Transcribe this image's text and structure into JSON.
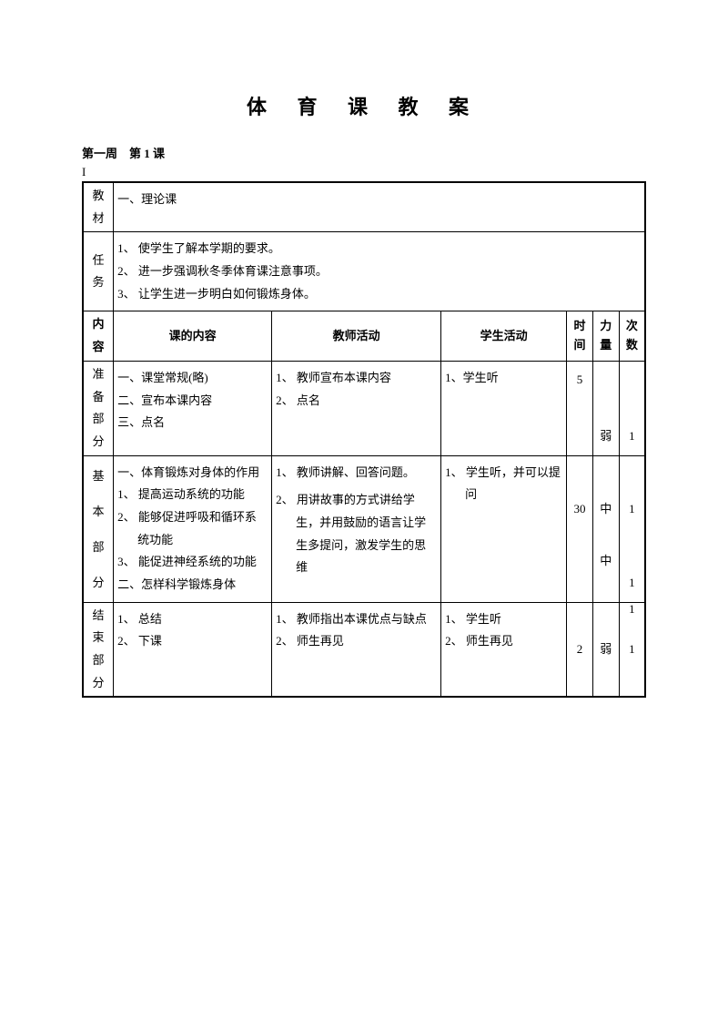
{
  "title": "体 育 课 教 案",
  "subtitle": "第一周　第 1 课",
  "marker": "I",
  "labels": {
    "material": "教材",
    "task": "任务",
    "content": "内容",
    "prepare": "准备部分",
    "basic": "基本部分",
    "end": "结束部分"
  },
  "headers": {
    "lesson_content": "课的内容",
    "teacher_activity": "教师活动",
    "student_activity": "学生活动",
    "time": "时间",
    "intensity": "力量",
    "count": "次数"
  },
  "material_text": "一、理论课",
  "task_lines": {
    "t1": "1、 使学生了解本学期的要求。",
    "t2": "2、 进一步强调秋冬季体育课注意事项。",
    "t3": "3、 让学生进一步明白如何锻炼身体。"
  },
  "prepare": {
    "content": {
      "l1": "一、课堂常规(略)",
      "l2": "二、宣布本课内容",
      "l3": "三、点名"
    },
    "teacher": {
      "l1": "1、 教师宣布本课内容",
      "l2": "2、 点名"
    },
    "student": {
      "l1": "1、学生听"
    },
    "time": "5",
    "intensity": "弱",
    "count": "1"
  },
  "basic": {
    "content": {
      "l1": "一、体育锻炼对身体的作用",
      "l2": "1、 提高运动系统的功能",
      "l3": "2、 能够促进呼吸和循环系统功能",
      "l4": "3、 能促进神经系统的功能",
      "l5": "二、怎样科学锻炼身体"
    },
    "teacher": {
      "l1": "1、 教师讲解、回答问题。",
      "l2": "2、 用讲故事的方式讲给学生，并用鼓励的语言让学生多提问，激发学生的思维"
    },
    "student": {
      "l1": "1、 学生听，并可以提问"
    },
    "time": "30",
    "intensity1": "中",
    "count1": "1",
    "count2": "1",
    "intensity2": "中",
    "count3": "1"
  },
  "end": {
    "content": {
      "l1": "1、 总结",
      "l2": "2、 下课"
    },
    "teacher": {
      "l1": "1、 教师指出本课优点与缺点",
      "l2": "2、 师生再见"
    },
    "student": {
      "l1": "1、 学生听",
      "l2": "2、 师生再见"
    },
    "time": "2",
    "intensity": "弱",
    "count": "1"
  }
}
